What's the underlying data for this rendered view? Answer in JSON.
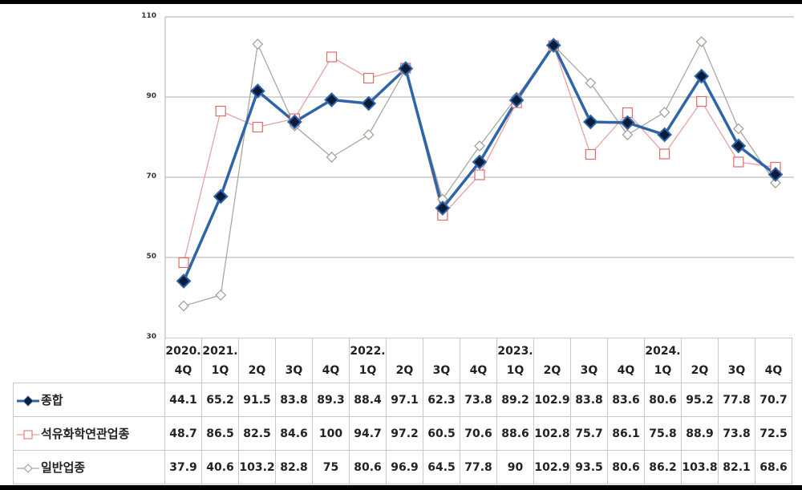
{
  "chart_data": {
    "type": "line",
    "title": "",
    "xlabel": "",
    "ylabel": "",
    "ylim": [
      30,
      110
    ],
    "yticks": [
      30,
      50,
      70,
      90,
      110
    ],
    "grid": true,
    "legend_position": "table-left",
    "categories": [
      "2020.4Q",
      "2021.1Q",
      "2021.2Q",
      "2021.3Q",
      "2021.4Q",
      "2022.1Q",
      "2022.2Q",
      "2022.3Q",
      "2022.4Q",
      "2023.1Q",
      "2023.2Q",
      "2023.3Q",
      "2023.4Q",
      "2024.1Q",
      "2024.2Q",
      "2024.3Q",
      "2024.4Q"
    ],
    "category_labels": [
      {
        "top": "2020.",
        "bottom": "4Q"
      },
      {
        "top": "2021.",
        "bottom": "1Q"
      },
      {
        "top": "",
        "bottom": "2Q"
      },
      {
        "top": "",
        "bottom": "3Q"
      },
      {
        "top": "",
        "bottom": "4Q"
      },
      {
        "top": "2022.",
        "bottom": "1Q"
      },
      {
        "top": "",
        "bottom": "2Q"
      },
      {
        "top": "",
        "bottom": "3Q"
      },
      {
        "top": "",
        "bottom": "4Q"
      },
      {
        "top": "2023.",
        "bottom": "1Q"
      },
      {
        "top": "",
        "bottom": "2Q"
      },
      {
        "top": "",
        "bottom": "3Q"
      },
      {
        "top": "",
        "bottom": "4Q"
      },
      {
        "top": "2024.",
        "bottom": "1Q"
      },
      {
        "top": "",
        "bottom": "2Q"
      },
      {
        "top": "",
        "bottom": "3Q"
      },
      {
        "top": "",
        "bottom": "4Q"
      }
    ],
    "series": [
      {
        "name": "종합",
        "color": "#2e64a8",
        "marker": "filled-diamond",
        "marker_color": "#0b1c3a",
        "values": [
          44.1,
          65.2,
          91.5,
          83.8,
          89.3,
          88.4,
          97.1,
          62.3,
          73.8,
          89.2,
          102.9,
          83.8,
          83.6,
          80.6,
          95.2,
          77.8,
          70.7
        ],
        "display": [
          "44.1",
          "65.2",
          "91.5",
          "83.8",
          "89.3",
          "88.4",
          "97.1",
          "62.3",
          "73.8",
          "89.2",
          "102.9",
          "83.8",
          "83.6",
          "80.6",
          "95.2",
          "77.8",
          "70.7"
        ]
      },
      {
        "name": "석유화학연관업종",
        "color": "#e8a0a0",
        "marker": "hollow-square",
        "marker_color": "#e06a6a",
        "values": [
          48.7,
          86.5,
          82.5,
          84.6,
          100,
          94.7,
          97.2,
          60.5,
          70.6,
          88.6,
          102.8,
          75.7,
          86.1,
          75.8,
          88.9,
          73.8,
          72.5
        ],
        "display": [
          "48.7",
          "86.5",
          "82.5",
          "84.6",
          "100",
          "94.7",
          "97.2",
          "60.5",
          "70.6",
          "88.6",
          "102.8",
          "75.7",
          "86.1",
          "75.8",
          "88.9",
          "73.8",
          "72.5"
        ]
      },
      {
        "name": "일반업종",
        "color": "#a8a8a0",
        "marker": "hollow-diamond",
        "marker_color": "#9a9a90",
        "values": [
          37.9,
          40.6,
          103.2,
          82.8,
          75,
          80.6,
          96.9,
          64.5,
          77.8,
          90,
          102.9,
          93.5,
          80.6,
          86.2,
          103.8,
          82.1,
          68.6
        ],
        "display": [
          "37.9",
          "40.6",
          "103.2",
          "82.8",
          "75",
          "80.6",
          "96.9",
          "64.5",
          "77.8",
          "90",
          "102.9",
          "93.5",
          "80.6",
          "86.2",
          "103.8",
          "82.1",
          "68.6"
        ]
      }
    ]
  },
  "axis": {
    "ytick_labels": [
      "110",
      "90",
      "70",
      "50",
      "30"
    ]
  },
  "colors": {
    "grid": "#c8c8c8",
    "frame_bar": "#000000"
  }
}
